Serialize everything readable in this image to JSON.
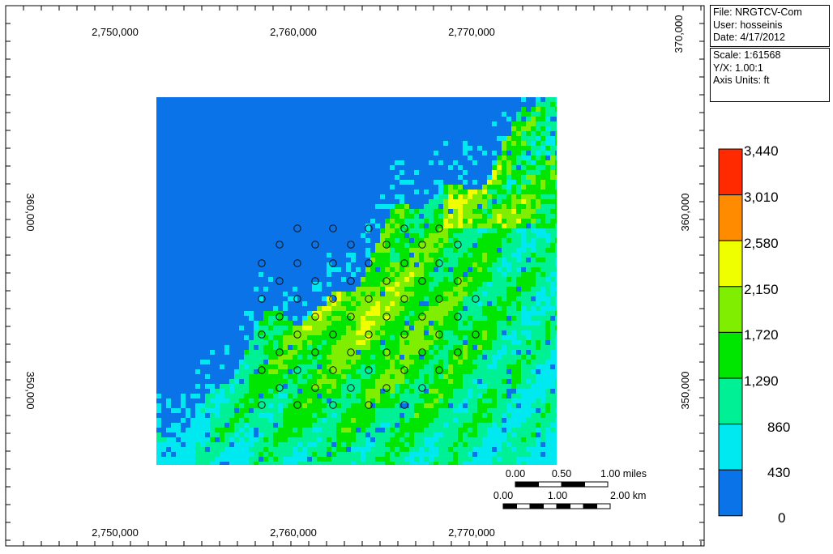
{
  "header_info": {
    "file": "File: NRGTCV-Com",
    "user": "User:  hosseinis",
    "date": "Date: 4/17/2012"
  },
  "map_info": {
    "scale": "Scale: 1:61568",
    "yx": "Y/X: 1.00:1",
    "axis_units": "Axis Units: ft"
  },
  "axes": {
    "x_ticks": [
      "2,750,000",
      "2,760,000",
      "2,770,000"
    ],
    "y_ticks": [
      "360,000",
      "350,000"
    ],
    "y_tick_right_top": "370,000"
  },
  "legend": {
    "labels": [
      "3,440",
      "3,010",
      "2,580",
      "2,150",
      "1,720",
      "1,290",
      "860",
      "430",
      "0"
    ],
    "colors": [
      "#ff2a00",
      "#ff8c00",
      "#f0ff00",
      "#80ee00",
      "#00e600",
      "#00f096",
      "#00e8f0",
      "#0a73e8"
    ]
  },
  "scale_bar": {
    "miles_labels": [
      "0.00",
      "0.50",
      "1.00 miles"
    ],
    "km_labels": [
      "0.00",
      "1.00",
      "2.00 km"
    ]
  },
  "palette": {
    "water_blue": "#0a73e8",
    "cyan": "#00e8f0",
    "teal": "#00f096",
    "green": "#00e600",
    "yellowgreen": "#80ee00",
    "yellow": "#f0ff00",
    "orange": "#ff8c00"
  }
}
